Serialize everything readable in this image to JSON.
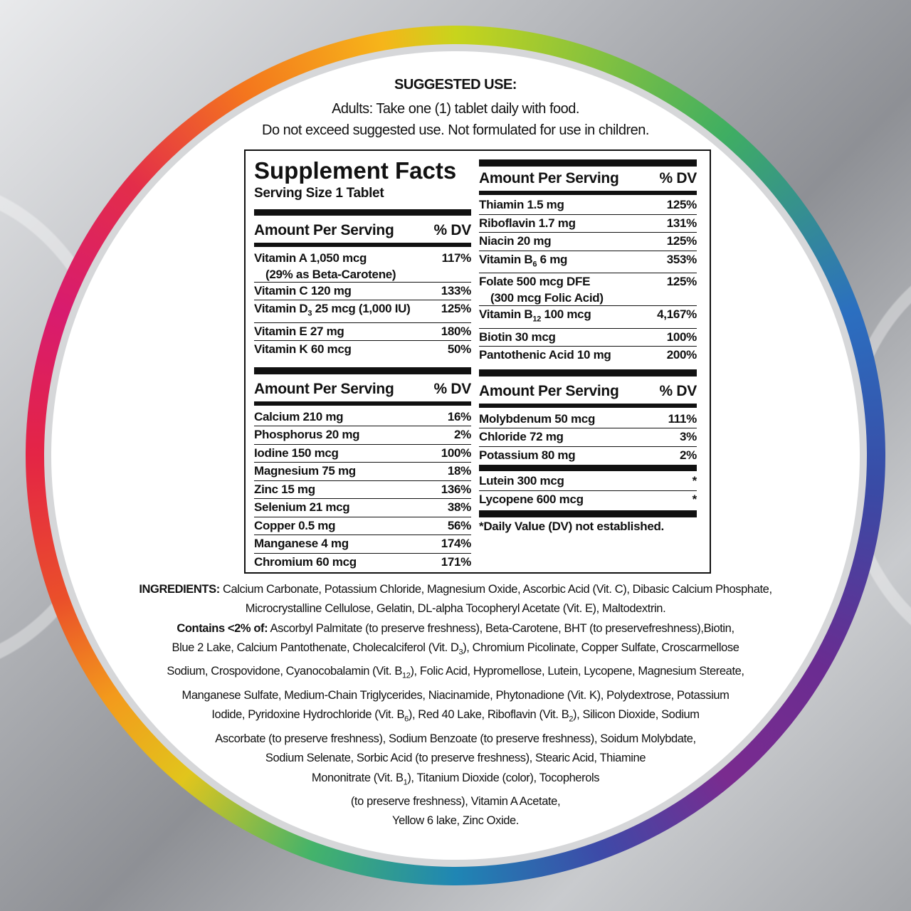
{
  "suggested_use": {
    "heading": "SUGGESTED USE:",
    "line1": "Adults: Take one (1) tablet daily with food.",
    "line2": "Do not exceed suggested use. Not formulated for use in children."
  },
  "facts": {
    "title": "Supplement Facts",
    "serving": "Serving Size 1 Tablet",
    "header_amount": "Amount Per Serving",
    "header_dv": "% DV",
    "left_vitamins": [
      {
        "name": "Vitamin A 1,050 mcg",
        "note": "(29% as Beta-Carotene)",
        "dv": "117%"
      },
      {
        "name": "Vitamin C 120 mg",
        "dv": "133%"
      },
      {
        "name": "Vitamin D",
        "sub": "3",
        "rest": " 25 mcg (1,000 IU)",
        "dv": "125%"
      },
      {
        "name": "Vitamin E 27 mg",
        "dv": "180%"
      },
      {
        "name": "Vitamin K 60 mcg",
        "dv": "50%"
      }
    ],
    "left_minerals": [
      {
        "name": "Calcium 210 mg",
        "dv": "16%"
      },
      {
        "name": "Phosphorus 20 mg",
        "dv": "2%"
      },
      {
        "name": "Iodine 150 mcg",
        "dv": "100%"
      },
      {
        "name": "Magnesium 75 mg",
        "dv": "18%"
      },
      {
        "name": "Zinc 15 mg",
        "dv": "136%"
      },
      {
        "name": "Selenium 21 mcg",
        "dv": "38%"
      },
      {
        "name": "Copper 0.5 mg",
        "dv": "56%"
      },
      {
        "name": "Manganese 4 mg",
        "dv": "174%"
      },
      {
        "name": "Chromium 60 mcg",
        "dv": "171%"
      }
    ],
    "right_vitamins": [
      {
        "name": "Thiamin 1.5 mg",
        "dv": "125%"
      },
      {
        "name": "Riboflavin 1.7 mg",
        "dv": "131%"
      },
      {
        "name": "Niacin 20 mg",
        "dv": "125%"
      },
      {
        "name": "Vitamin B",
        "sub": "6",
        "rest": " 6 mg",
        "dv": "353%"
      },
      {
        "name": "Folate 500 mcg DFE",
        "note": "(300 mcg Folic Acid)",
        "dv": "125%"
      },
      {
        "name": "Vitamin B",
        "sub": "12",
        "rest": " 100 mcg",
        "dv": "4,167%"
      },
      {
        "name": "Biotin 30 mcg",
        "dv": "100%"
      },
      {
        "name": "Pantothenic Acid 10 mg",
        "dv": "200%"
      }
    ],
    "right_minerals": [
      {
        "name": "Molybdenum 50 mcg",
        "dv": "111%"
      },
      {
        "name": "Chloride 72 mg",
        "dv": "3%"
      },
      {
        "name": "Potassium 80 mg",
        "dv": "2%"
      }
    ],
    "right_other": [
      {
        "name": "Lutein 300 mcg",
        "dv": "*"
      },
      {
        "name": "Lycopene 600 mcg",
        "dv": "*"
      }
    ],
    "footnote": "*Daily Value (DV) not established."
  },
  "ingredients": {
    "label": "INGREDIENTS:",
    "line1": " Calcium Carbonate, Potassium Chloride, Magnesium Oxide, Ascorbic Acid (Vit. C), Dibasic Calcium Phosphate,",
    "line2": "Microcrystalline Cellulose, Gelatin, DL-alpha Tocopheryl Acetate (Vit. E), Maltodextrin.",
    "contains_label": "Contains <2% of:",
    "lines": [
      [
        " Ascorbyl Palmitate (to preserve freshness), Beta-Carotene, BHT (to preservefreshness),Biotin,"
      ],
      [
        "Blue 2 Lake, Calcium Pantothenate, Cholecalciferol (Vit. D",
        {
          "sub": "3"
        },
        "), Chromium Picolinate, Copper Sulfate, Croscarmellose"
      ],
      [
        "Sodium, Crospovidone, Cyanocobalamin (Vit. B",
        {
          "sub": "12"
        },
        "), Folic Acid, Hypromellose, Lutein, Lycopene, Magnesium Stereate,"
      ],
      [
        "Manganese Sulfate, Medium-Chain Triglycerides, Niacinamide, Phytonadione (Vit. K), Polydextrose, Potassium"
      ],
      [
        "Iodide, Pyridoxine Hydrochloride (Vit. B",
        {
          "sub": "6"
        },
        "), Red 40 Lake, Riboflavin (Vit. B",
        {
          "sub": "2"
        },
        "), Silicon Dioxide, Sodium"
      ],
      [
        "Ascorbate (to preserve freshness), Sodium Benzoate (to preserve freshness), Soidum Molybdate,"
      ],
      [
        "Sodium Selenate, Sorbic Acid (to preserve freshness), Stearic Acid, Thiamine"
      ],
      [
        "Mononitrate (Vit. B",
        {
          "sub": "1"
        },
        "), Titanium Dioxide (color), Tocopherols"
      ],
      [
        "(to preserve freshness), Vitamin A Acetate,"
      ],
      [
        "Yellow 6 lake, Zinc Oxide."
      ]
    ]
  }
}
